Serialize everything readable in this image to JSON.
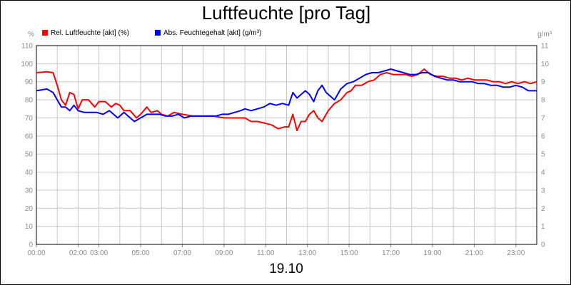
{
  "chart_data": {
    "type": "line",
    "title": "Luftfeuchte [pro Tag]",
    "date_label": "19.10",
    "x_label": "19.10",
    "y_left": {
      "unit": "%",
      "range": [
        0,
        110
      ],
      "ticks": [
        "0",
        "10",
        "20",
        "30",
        "40",
        "50",
        "60",
        "70",
        "80",
        "90",
        "100",
        "110"
      ]
    },
    "y_right": {
      "unit": "g/m³",
      "range": [
        0,
        11
      ],
      "ticks": [
        "0",
        "1",
        "2",
        "3",
        "4",
        "5",
        "6",
        "7",
        "8",
        "9",
        "10",
        "11"
      ]
    },
    "x_range": [
      0,
      24
    ],
    "x_ticks": [
      {
        "h": 0,
        "label": "00:00"
      },
      {
        "h": 2,
        "label": "02:00"
      },
      {
        "h": 3,
        "label": "03:00"
      },
      {
        "h": 5,
        "label": "05:00"
      },
      {
        "h": 7,
        "label": "07:00"
      },
      {
        "h": 9,
        "label": "09:00"
      },
      {
        "h": 11,
        "label": "11:00"
      },
      {
        "h": 13,
        "label": "13:00"
      },
      {
        "h": 15,
        "label": "15:00"
      },
      {
        "h": 17,
        "label": "17:00"
      },
      {
        "h": 19,
        "label": "19:00"
      },
      {
        "h": 21,
        "label": "21:00"
      },
      {
        "h": 23,
        "label": "23:00"
      }
    ],
    "grid": true,
    "legend_position": "top-left",
    "series": [
      {
        "name": "Rel. Luftfeuchte [akt] (%)",
        "axis": "left",
        "color": "#ff0000",
        "points": [
          [
            0,
            95
          ],
          [
            0.5,
            95.5
          ],
          [
            0.8,
            95
          ],
          [
            1.0,
            88
          ],
          [
            1.2,
            80
          ],
          [
            1.4,
            77
          ],
          [
            1.6,
            84
          ],
          [
            1.8,
            83
          ],
          [
            2.0,
            75
          ],
          [
            2.2,
            80
          ],
          [
            2.5,
            80
          ],
          [
            2.8,
            76
          ],
          [
            3.0,
            79
          ],
          [
            3.3,
            79
          ],
          [
            3.6,
            76
          ],
          [
            3.8,
            78
          ],
          [
            4.0,
            77
          ],
          [
            4.2,
            74
          ],
          [
            4.5,
            74
          ],
          [
            4.8,
            70
          ],
          [
            5.0,
            72
          ],
          [
            5.3,
            76
          ],
          [
            5.5,
            73
          ],
          [
            5.8,
            74
          ],
          [
            6.0,
            72
          ],
          [
            6.3,
            71
          ],
          [
            6.6,
            73
          ],
          [
            7.0,
            72
          ],
          [
            7.5,
            71
          ],
          [
            8.0,
            71
          ],
          [
            8.5,
            71
          ],
          [
            9.0,
            70
          ],
          [
            9.5,
            70
          ],
          [
            10.0,
            70
          ],
          [
            10.3,
            68
          ],
          [
            10.6,
            68
          ],
          [
            11.0,
            67
          ],
          [
            11.3,
            66
          ],
          [
            11.6,
            64
          ],
          [
            11.9,
            65
          ],
          [
            12.1,
            65
          ],
          [
            12.3,
            72
          ],
          [
            12.5,
            63
          ],
          [
            12.7,
            68
          ],
          [
            12.9,
            68
          ],
          [
            13.1,
            72
          ],
          [
            13.3,
            74
          ],
          [
            13.5,
            70
          ],
          [
            13.7,
            68
          ],
          [
            14.0,
            74
          ],
          [
            14.3,
            78
          ],
          [
            14.6,
            80
          ],
          [
            14.9,
            84
          ],
          [
            15.1,
            85
          ],
          [
            15.3,
            88
          ],
          [
            15.6,
            88
          ],
          [
            15.9,
            90
          ],
          [
            16.2,
            91
          ],
          [
            16.5,
            94
          ],
          [
            16.8,
            95
          ],
          [
            17.1,
            94
          ],
          [
            17.4,
            94
          ],
          [
            17.7,
            94
          ],
          [
            18.0,
            93
          ],
          [
            18.3,
            94
          ],
          [
            18.6,
            97
          ],
          [
            18.9,
            94
          ],
          [
            19.2,
            93
          ],
          [
            19.5,
            93
          ],
          [
            19.8,
            92
          ],
          [
            20.1,
            92
          ],
          [
            20.4,
            91
          ],
          [
            20.7,
            92
          ],
          [
            21.0,
            91
          ],
          [
            21.3,
            91
          ],
          [
            21.6,
            91
          ],
          [
            21.9,
            90
          ],
          [
            22.2,
            90
          ],
          [
            22.5,
            89
          ],
          [
            22.8,
            90
          ],
          [
            23.1,
            89
          ],
          [
            23.4,
            90
          ],
          [
            23.7,
            89
          ],
          [
            24.0,
            90
          ]
        ]
      },
      {
        "name": "Abs. Feuchtegehalt [akt] (g/m³)",
        "axis": "right",
        "color": "#0000ff",
        "points": [
          [
            0,
            8.5
          ],
          [
            0.5,
            8.6
          ],
          [
            0.8,
            8.4
          ],
          [
            1.0,
            8.0
          ],
          [
            1.2,
            7.6
          ],
          [
            1.4,
            7.6
          ],
          [
            1.6,
            7.4
          ],
          [
            1.8,
            7.7
          ],
          [
            2.0,
            7.4
          ],
          [
            2.3,
            7.3
          ],
          [
            2.6,
            7.3
          ],
          [
            2.9,
            7.3
          ],
          [
            3.2,
            7.2
          ],
          [
            3.5,
            7.4
          ],
          [
            3.7,
            7.2
          ],
          [
            3.9,
            7.0
          ],
          [
            4.2,
            7.3
          ],
          [
            4.5,
            7.0
          ],
          [
            4.7,
            6.8
          ],
          [
            5.0,
            7.0
          ],
          [
            5.3,
            7.2
          ],
          [
            5.6,
            7.2
          ],
          [
            5.9,
            7.2
          ],
          [
            6.2,
            7.1
          ],
          [
            6.5,
            7.1
          ],
          [
            6.8,
            7.2
          ],
          [
            7.1,
            7.0
          ],
          [
            7.4,
            7.1
          ],
          [
            7.7,
            7.1
          ],
          [
            8.0,
            7.1
          ],
          [
            8.3,
            7.1
          ],
          [
            8.6,
            7.1
          ],
          [
            8.9,
            7.2
          ],
          [
            9.2,
            7.2
          ],
          [
            9.5,
            7.3
          ],
          [
            9.8,
            7.4
          ],
          [
            10.0,
            7.5
          ],
          [
            10.3,
            7.4
          ],
          [
            10.6,
            7.5
          ],
          [
            10.9,
            7.6
          ],
          [
            11.2,
            7.8
          ],
          [
            11.5,
            7.7
          ],
          [
            11.8,
            7.8
          ],
          [
            12.1,
            7.7
          ],
          [
            12.3,
            8.4
          ],
          [
            12.5,
            8.1
          ],
          [
            12.7,
            8.3
          ],
          [
            12.9,
            8.5
          ],
          [
            13.1,
            8.3
          ],
          [
            13.3,
            7.9
          ],
          [
            13.5,
            8.5
          ],
          [
            13.7,
            8.8
          ],
          [
            13.9,
            8.4
          ],
          [
            14.1,
            8.2
          ],
          [
            14.3,
            8.0
          ],
          [
            14.6,
            8.6
          ],
          [
            14.9,
            8.9
          ],
          [
            15.2,
            9.0
          ],
          [
            15.5,
            9.2
          ],
          [
            15.8,
            9.4
          ],
          [
            16.1,
            9.5
          ],
          [
            16.4,
            9.5
          ],
          [
            16.7,
            9.6
          ],
          [
            17.0,
            9.7
          ],
          [
            17.3,
            9.6
          ],
          [
            17.6,
            9.5
          ],
          [
            17.9,
            9.4
          ],
          [
            18.2,
            9.4
          ],
          [
            18.5,
            9.5
          ],
          [
            18.8,
            9.5
          ],
          [
            19.1,
            9.3
          ],
          [
            19.4,
            9.2
          ],
          [
            19.7,
            9.1
          ],
          [
            20.0,
            9.1
          ],
          [
            20.3,
            9.0
          ],
          [
            20.6,
            9.0
          ],
          [
            20.9,
            9.0
          ],
          [
            21.2,
            8.9
          ],
          [
            21.5,
            8.9
          ],
          [
            21.8,
            8.8
          ],
          [
            22.1,
            8.8
          ],
          [
            22.4,
            8.7
          ],
          [
            22.7,
            8.7
          ],
          [
            23.0,
            8.8
          ],
          [
            23.3,
            8.7
          ],
          [
            23.6,
            8.5
          ],
          [
            24.0,
            8.5
          ]
        ]
      }
    ]
  }
}
